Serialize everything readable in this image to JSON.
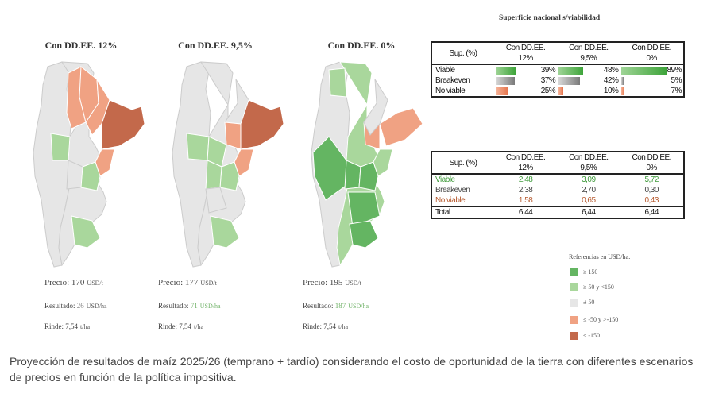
{
  "colors": {
    "ge150": "#64b562",
    "50to150": "#a9d79c",
    "neutral": "#e6e6e6",
    "neg50to150": "#f0a283",
    "le_neg150": "#c3694b"
  },
  "maps": [
    {
      "title": "Con DD.EE. 12%",
      "precio_label": "Precio:",
      "precio_value": "170",
      "precio_unit": "USD/t",
      "resultado_label": "Resultado:",
      "resultado_value": "26",
      "resultado_unit": "USD/ha",
      "rinde_label": "Rinde:",
      "rinde_value": "7,54",
      "rinde_unit": "t/ha"
    },
    {
      "title": "Con DD.EE. 9,5%",
      "precio_label": "Precio:",
      "precio_value": "177",
      "precio_unit": "USD/t",
      "resultado_label": "Resultado:",
      "resultado_value": "71",
      "resultado_unit": "USD/ha",
      "rinde_label": "Rinde:",
      "rinde_value": "7,54",
      "rinde_unit": "t/ha"
    },
    {
      "title": "Con DD.EE. 0%",
      "precio_label": "Precio:",
      "precio_value": "195",
      "precio_unit": "USD/t",
      "resultado_label": "Resultado:",
      "resultado_value": "187",
      "resultado_unit": "USD/ha",
      "rinde_label": "Rinde:",
      "rinde_value": "7,54",
      "rinde_unit": "t/ha"
    }
  ],
  "chart_data": [
    {
      "type": "table",
      "title": "Superficie nacional s/viabilidad",
      "row_header": "Sup. (%)",
      "columns": [
        "Con DD.EE. 12%",
        "Con DD.EE. 9,5%",
        "Con DD.EE. 0%"
      ],
      "column_lines": [
        [
          "Con DD.EE.",
          "12%"
        ],
        [
          "Con DD.EE.",
          "9,5%"
        ],
        [
          "Con DD.EE.",
          "0%"
        ]
      ],
      "rows": [
        {
          "label": "Viable",
          "values": [
            39,
            48,
            89
          ],
          "display": [
            "39%",
            "48%",
            "89%"
          ]
        },
        {
          "label": "Breakeven",
          "values": [
            37,
            42,
            5
          ],
          "display": [
            "37%",
            "42%",
            "5%"
          ]
        },
        {
          "label": "No viable",
          "values": [
            25,
            10,
            7
          ],
          "display": [
            "25%",
            "10%",
            "7%"
          ]
        }
      ]
    },
    {
      "type": "table",
      "row_header": "Sup. (%)",
      "columns": [
        "Con DD.EE. 12%",
        "Con DD.EE. 9,5%",
        "Con DD.EE. 0%"
      ],
      "column_lines": [
        [
          "Con DD.EE.",
          "12%"
        ],
        [
          "Con DD.EE.",
          "9,5%"
        ],
        [
          "Con DD.EE.",
          "0%"
        ]
      ],
      "rows": [
        {
          "label": "Viable",
          "values": [
            "2,48",
            "3,09",
            "5,72"
          ]
        },
        {
          "label": "Breakeven",
          "values": [
            "2,38",
            "2,70",
            "0,30"
          ]
        },
        {
          "label": "No viable",
          "values": [
            "1,58",
            "0,65",
            "0,43"
          ]
        },
        {
          "label": "Total",
          "values": [
            "6,44",
            "6,44",
            "6,44"
          ]
        }
      ]
    }
  ],
  "legend": {
    "title": "Referencias en USD/ha:",
    "items": [
      {
        "label": "≥ 150",
        "color": "#64b562"
      },
      {
        "label": "≥ 50 y <150",
        "color": "#a9d79c"
      },
      {
        "label": "± 50",
        "color": "#e6e6e6"
      },
      {
        "label": "≤ -50 y >-150",
        "color": "#f0a283"
      },
      {
        "label": "≤ -150",
        "color": "#c3694b"
      }
    ]
  },
  "caption": "Proyección de resultados de maíz 2025/26 (temprano + tardío) considerando el costo de oportunidad de la tierra con diferentes escenarios de precios en función de la política impositiva."
}
